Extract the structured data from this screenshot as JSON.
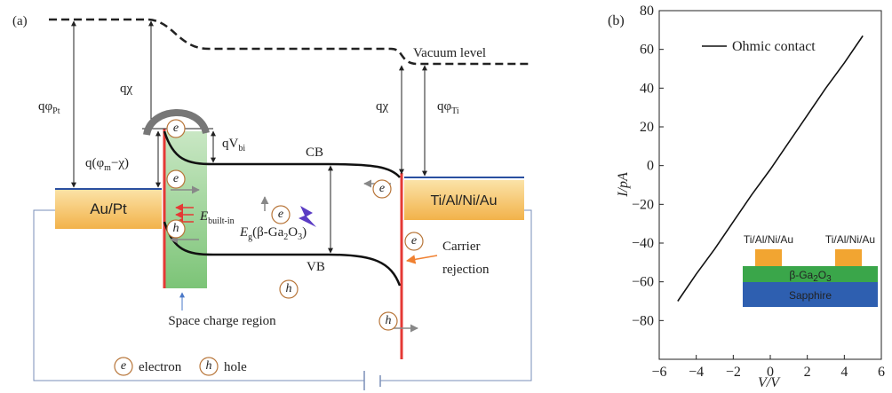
{
  "diagram": {
    "panel_label": "(a)",
    "vacuum_level": "Vacuum level",
    "q_phi_pt": [
      "qφ",
      "Pt"
    ],
    "q_chi_left": "qχ",
    "q_phi_m_chi": [
      "q(φ",
      "m",
      "−χ)"
    ],
    "q_v_bi": [
      "qV",
      "bi"
    ],
    "cb": "CB",
    "vb": "VB",
    "metal_left": "Au/Pt",
    "metal_right": "Ti/Al/Ni/Au",
    "e_built_in": [
      "E",
      "built-in"
    ],
    "e_g": [
      "E",
      "g",
      "(β-Ga",
      "2",
      "O",
      "3",
      ")"
    ],
    "carrier_rejection": [
      "Carrier",
      "rejection"
    ],
    "space_charge_region": "Space charge region",
    "q_chi_right": "qχ",
    "q_phi_ti": [
      "qφ",
      "Ti"
    ],
    "electron_symbol": "e",
    "hole_symbol": "h",
    "legend": {
      "electron": "electron",
      "hole": "hole"
    }
  },
  "chart_data": {
    "type": "line",
    "panel_label": "(b)",
    "x_label": "V/V",
    "y_label": "I/pA",
    "x": [
      -5,
      -4,
      -3,
      -2,
      -1,
      0,
      1,
      2,
      3,
      4,
      5
    ],
    "series": [
      {
        "name": "Ohmic contact",
        "color": "#111111",
        "values": [
          -70,
          -56,
          -43,
          -29,
          -15,
          -2,
          12,
          26,
          40,
          53,
          67
        ]
      }
    ],
    "xlim": [
      -6,
      6
    ],
    "xticks": [
      {
        "value": -6,
        "label": "−6"
      },
      {
        "value": -4,
        "label": "−4"
      },
      {
        "value": -2,
        "label": "−2"
      },
      0,
      2,
      4,
      6
    ],
    "ylim": [
      -100,
      80
    ],
    "yticks": [
      {
        "value": -80,
        "label": "−80"
      },
      {
        "value": -60,
        "label": "−60"
      },
      {
        "value": -40,
        "label": "−40"
      },
      {
        "value": -20,
        "label": "−20"
      },
      0,
      20,
      40,
      60,
      80
    ],
    "legend": "upper left",
    "inset": {
      "contact_labels": [
        "Ti/Al/Ni/Au",
        "Ti/Al/Ni/Au"
      ],
      "layer_label": [
        "β-Ga",
        "2",
        "O",
        "3"
      ],
      "substrate_label": "Sapphire"
    }
  }
}
